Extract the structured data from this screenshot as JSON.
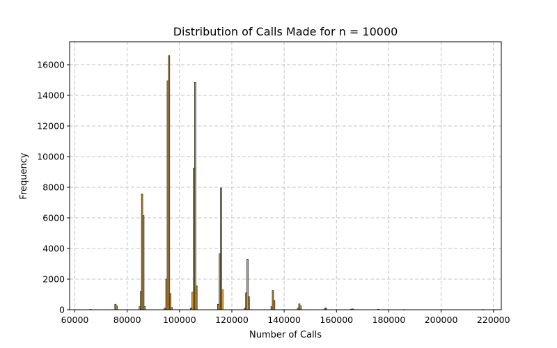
{
  "chart_data": {
    "type": "bar",
    "title": "Distribution of Calls Made for n = 10000",
    "xlabel": "Number of Calls",
    "ylabel": "Frequency",
    "xlim": [
      58000,
      223000
    ],
    "ylim": [
      0,
      17500
    ],
    "xticks": [
      60000,
      80000,
      100000,
      120000,
      140000,
      160000,
      180000,
      200000,
      220000
    ],
    "yticks": [
      0,
      2000,
      4000,
      6000,
      8000,
      10000,
      12000,
      14000,
      16000
    ],
    "grid": true,
    "bar_color": "#d69a2c",
    "bar_edge_color": "#2b2b2b",
    "bin_width": 500,
    "bins": [
      {
        "x": 66000,
        "value": 20
      },
      {
        "x": 75500,
        "value": 350
      },
      {
        "x": 76000,
        "value": 250
      },
      {
        "x": 84800,
        "value": 200
      },
      {
        "x": 85300,
        "value": 1200
      },
      {
        "x": 85700,
        "value": 7550
      },
      {
        "x": 86200,
        "value": 6150
      },
      {
        "x": 86700,
        "value": 200
      },
      {
        "x": 94300,
        "value": 100
      },
      {
        "x": 95000,
        "value": 2000
      },
      {
        "x": 95500,
        "value": 14950
      },
      {
        "x": 96000,
        "value": 16600
      },
      {
        "x": 96500,
        "value": 1050
      },
      {
        "x": 97000,
        "value": 150
      },
      {
        "x": 104400,
        "value": 100
      },
      {
        "x": 105000,
        "value": 1150
      },
      {
        "x": 105500,
        "value": 9250
      },
      {
        "x": 106000,
        "value": 14850
      },
      {
        "x": 106500,
        "value": 1550
      },
      {
        "x": 114800,
        "value": 350
      },
      {
        "x": 115400,
        "value": 3650
      },
      {
        "x": 115900,
        "value": 7950
      },
      {
        "x": 116400,
        "value": 1300
      },
      {
        "x": 125000,
        "value": 100
      },
      {
        "x": 125500,
        "value": 1100
      },
      {
        "x": 126000,
        "value": 3300
      },
      {
        "x": 126500,
        "value": 850
      },
      {
        "x": 135200,
        "value": 200
      },
      {
        "x": 135700,
        "value": 1250
      },
      {
        "x": 136200,
        "value": 600
      },
      {
        "x": 145300,
        "value": 100
      },
      {
        "x": 145800,
        "value": 380
      },
      {
        "x": 146300,
        "value": 250
      },
      {
        "x": 155500,
        "value": 60
      },
      {
        "x": 156000,
        "value": 120
      },
      {
        "x": 165700,
        "value": 40
      },
      {
        "x": 166200,
        "value": 50
      },
      {
        "x": 176000,
        "value": 30
      },
      {
        "x": 186000,
        "value": 10
      },
      {
        "x": 216000,
        "value": 8
      }
    ]
  }
}
